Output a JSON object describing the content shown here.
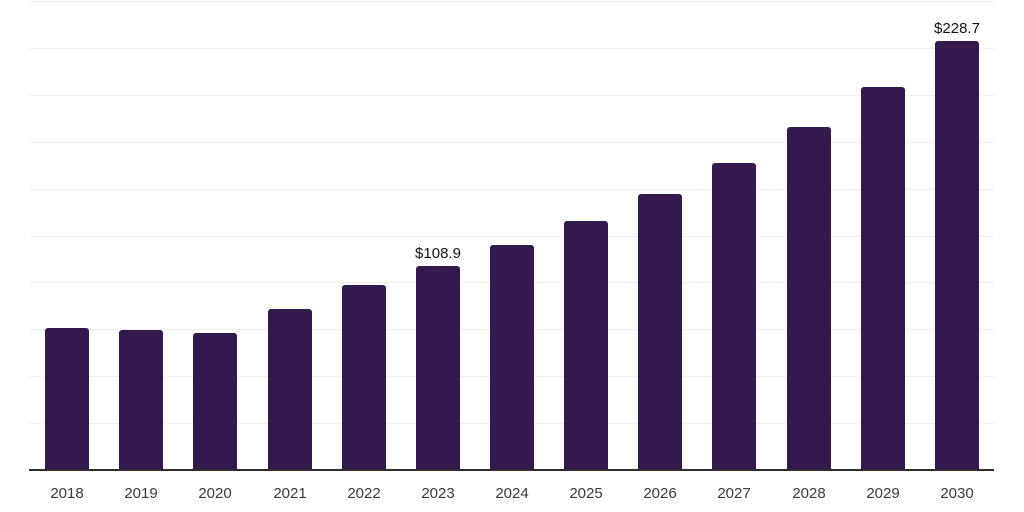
{
  "chart_data": {
    "type": "bar",
    "title": "",
    "xlabel": "",
    "ylabel": "",
    "categories": [
      "2018",
      "2019",
      "2020",
      "2021",
      "2022",
      "2023",
      "2024",
      "2025",
      "2026",
      "2027",
      "2028",
      "2029",
      "2030"
    ],
    "values": [
      75.8,
      74.5,
      72.9,
      85.9,
      98.5,
      108.9,
      119.9,
      132.9,
      146.9,
      163.8,
      183.1,
      204.4,
      228.7
    ],
    "data_labels": [
      "",
      "",
      "",
      "",
      "",
      "$108.9",
      "",
      "",
      "",
      "",
      "",
      "",
      "$228.7"
    ],
    "ylim": [
      0,
      250
    ],
    "grid_step": 25,
    "grid": true,
    "legend": false,
    "colors": {
      "bar": "#33194e",
      "gridline": "#efefef",
      "axis_line": "#2e2e2e",
      "x_tick_label": "#3a3a3a",
      "data_label": "#121212",
      "background": "#ffffff"
    }
  }
}
